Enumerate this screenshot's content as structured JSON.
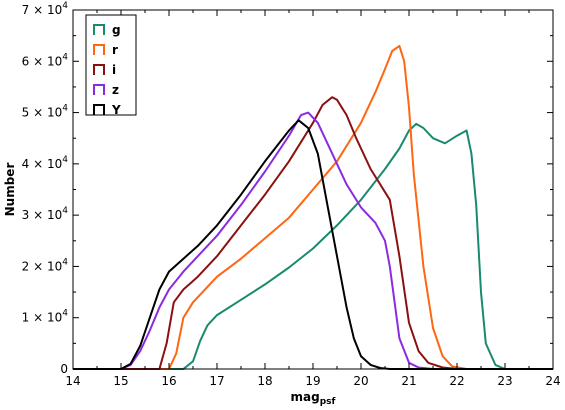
{
  "chart_data": {
    "type": "line",
    "title": "",
    "xlabel": "mag",
    "xlabel_sub": "psf",
    "ylabel": "Number",
    "xlim": [
      14,
      24
    ],
    "ylim": [
      0,
      70000
    ],
    "x_ticks": [
      14,
      15,
      16,
      17,
      18,
      19,
      20,
      21,
      22,
      23,
      24
    ],
    "x_tick_labels": [
      "14",
      "15",
      "16",
      "17",
      "18",
      "19",
      "20",
      "21",
      "22",
      "23",
      "24"
    ],
    "y_ticks": [
      0,
      10000,
      20000,
      30000,
      40000,
      50000,
      60000,
      70000
    ],
    "y_tick_labels": [
      {
        "mant": "0",
        "exp": ""
      },
      {
        "mant": "1 × 10",
        "exp": "4"
      },
      {
        "mant": "2 × 10",
        "exp": "4"
      },
      {
        "mant": "3 × 10",
        "exp": "4"
      },
      {
        "mant": "4 × 10",
        "exp": "4"
      },
      {
        "mant": "5 × 10",
        "exp": "4"
      },
      {
        "mant": "6 × 10",
        "exp": "4"
      },
      {
        "mant": "7 × 10",
        "exp": "4"
      }
    ],
    "grid": false,
    "legend_position": "top-left",
    "series": [
      {
        "name": "g",
        "color": "#1a8a6e",
        "x": [
          14.0,
          16.3,
          16.5,
          16.65,
          16.8,
          17.0,
          17.5,
          18.0,
          18.5,
          19.0,
          19.5,
          20.0,
          20.5,
          20.8,
          21.0,
          21.15,
          21.3,
          21.5,
          21.75,
          22.0,
          22.2,
          22.3,
          22.4,
          22.5,
          22.6,
          22.8,
          23.0,
          24.0
        ],
        "y": [
          0,
          0,
          1500,
          5500,
          8500,
          10500,
          13500,
          16500,
          19800,
          23500,
          28000,
          33000,
          39000,
          43000,
          46500,
          47800,
          47000,
          45000,
          44000,
          45500,
          46500,
          42000,
          32000,
          15000,
          5000,
          800,
          0,
          0
        ]
      },
      {
        "name": "r",
        "color": "#ff6611",
        "x": [
          14.0,
          16.0,
          16.15,
          16.3,
          16.5,
          16.8,
          17.0,
          17.5,
          18.0,
          18.5,
          19.0,
          19.5,
          20.0,
          20.3,
          20.5,
          20.65,
          20.8,
          20.9,
          21.0,
          21.1,
          21.3,
          21.5,
          21.7,
          21.9,
          22.2,
          24.0
        ],
        "y": [
          0,
          0,
          3000,
          10000,
          13000,
          16000,
          18000,
          21500,
          25500,
          29500,
          35000,
          40500,
          48000,
          54000,
          58500,
          62000,
          63000,
          60000,
          51000,
          38000,
          20000,
          8000,
          2500,
          500,
          0,
          0
        ]
      },
      {
        "name": "i",
        "color": "#8b1111",
        "x": [
          14.0,
          15.8,
          15.95,
          16.1,
          16.3,
          16.6,
          17.0,
          17.5,
          18.0,
          18.5,
          19.0,
          19.2,
          19.4,
          19.5,
          19.7,
          19.9,
          20.2,
          20.4,
          20.6,
          20.8,
          21.0,
          21.2,
          21.4,
          21.7,
          22.0,
          24.0
        ],
        "y": [
          0,
          0,
          5000,
          13000,
          15500,
          18000,
          22000,
          28000,
          34000,
          40500,
          48000,
          51500,
          53000,
          52500,
          49500,
          45000,
          39000,
          36000,
          33000,
          22000,
          9000,
          3500,
          1200,
          300,
          0,
          0
        ]
      },
      {
        "name": "z",
        "color": "#8a2be2",
        "x": [
          14.0,
          15.0,
          15.2,
          15.4,
          15.6,
          15.8,
          16.0,
          16.3,
          16.6,
          17.0,
          17.5,
          18.0,
          18.5,
          18.75,
          18.9,
          19.1,
          19.3,
          19.5,
          19.7,
          20.0,
          20.3,
          20.5,
          20.6,
          20.7,
          20.8,
          21.0,
          21.2,
          21.5,
          24.0
        ],
        "y": [
          0,
          0,
          800,
          3500,
          7500,
          12000,
          15500,
          19000,
          22000,
          26000,
          32000,
          38500,
          45500,
          49500,
          50000,
          48000,
          44000,
          40000,
          36000,
          31500,
          28500,
          25000,
          20000,
          13000,
          6000,
          1200,
          300,
          0,
          0
        ]
      },
      {
        "name": "Y",
        "color": "#000000",
        "x": [
          14.0,
          15.0,
          15.2,
          15.4,
          15.6,
          15.8,
          16.0,
          16.3,
          16.6,
          17.0,
          17.5,
          18.0,
          18.5,
          18.7,
          18.9,
          19.1,
          19.3,
          19.5,
          19.7,
          19.85,
          20.0,
          20.2,
          20.4,
          20.6,
          24.0
        ],
        "y": [
          0,
          0,
          1000,
          4500,
          10000,
          15500,
          19000,
          21500,
          24000,
          28000,
          34000,
          40500,
          46500,
          48500,
          47000,
          42000,
          32000,
          22000,
          12000,
          6000,
          2500,
          800,
          200,
          0,
          0
        ]
      }
    ]
  }
}
